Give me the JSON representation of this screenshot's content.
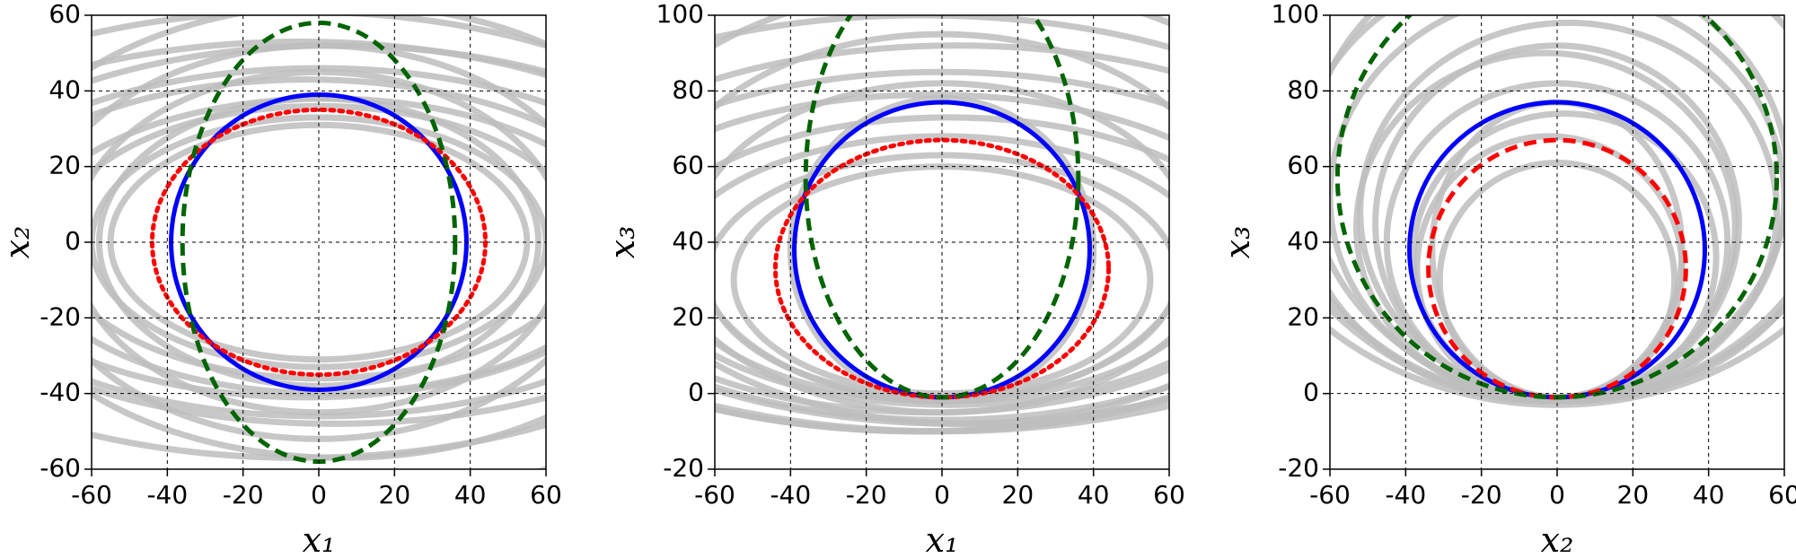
{
  "chart_data": [
    {
      "type": "ellipse",
      "xlabel": "x₁",
      "ylabel": "x₂",
      "xlim": [
        -60,
        60
      ],
      "ylim": [
        -60,
        60
      ],
      "xticks": [
        -60,
        -40,
        -20,
        0,
        20,
        40,
        60
      ],
      "yticks": [
        -60,
        -40,
        -20,
        0,
        20,
        40,
        60
      ],
      "grid": true,
      "ellipses": [
        {
          "color": "#bdbdbd",
          "style": "solid",
          "center": [
            0,
            0
          ],
          "radii": [
            55,
            31
          ]
        },
        {
          "color": "#bdbdbd",
          "style": "solid",
          "center": [
            0,
            0
          ],
          "radii": [
            60,
            33
          ]
        },
        {
          "color": "#bdbdbd",
          "style": "solid",
          "center": [
            0,
            0
          ],
          "radii": [
            70,
            36
          ]
        },
        {
          "color": "#bdbdbd",
          "style": "solid",
          "center": [
            2,
            -1
          ],
          "radii": [
            80,
            39
          ]
        },
        {
          "color": "#bdbdbd",
          "style": "solid",
          "center": [
            -3,
            1
          ],
          "radii": [
            90,
            42
          ]
        },
        {
          "color": "#bdbdbd",
          "style": "solid",
          "center": [
            0,
            0
          ],
          "radii": [
            100,
            46
          ]
        },
        {
          "color": "#bdbdbd",
          "style": "solid",
          "center": [
            4,
            2
          ],
          "radii": [
            110,
            50
          ]
        },
        {
          "color": "#bdbdbd",
          "style": "solid",
          "center": [
            -5,
            -2
          ],
          "radii": [
            120,
            55
          ]
        },
        {
          "color": "#bdbdbd",
          "style": "solid",
          "center": [
            0,
            0
          ],
          "radii": [
            65,
            45
          ]
        },
        {
          "color": "#bdbdbd",
          "style": "solid",
          "center": [
            0,
            0
          ],
          "radii": [
            75,
            52
          ]
        },
        {
          "color": "#bdbdbd",
          "style": "solid",
          "center": [
            6,
            3
          ],
          "radii": [
            95,
            60
          ]
        },
        {
          "color": "#bdbdbd",
          "style": "solid",
          "center": [
            -6,
            -4
          ],
          "radii": [
            130,
            65
          ]
        },
        {
          "color": "#bdbdbd",
          "style": "solid",
          "center": [
            0,
            0
          ],
          "radii": [
            58,
            38
          ]
        },
        {
          "color": "#bdbdbd",
          "style": "solid",
          "center": [
            0,
            0
          ],
          "radii": [
            140,
            70
          ]
        },
        {
          "color": "#0000ff",
          "style": "solid",
          "center": [
            0,
            0
          ],
          "radii": [
            39,
            39
          ]
        },
        {
          "color": "#ff0000",
          "style": "dotted",
          "center": [
            0,
            0
          ],
          "radii": [
            44,
            35
          ]
        },
        {
          "color": "#006400",
          "style": "dashed",
          "center": [
            0,
            0
          ],
          "radii": [
            36,
            58
          ]
        }
      ]
    },
    {
      "type": "ellipse",
      "xlabel": "x₁",
      "ylabel": "x₃",
      "xlim": [
        -60,
        60
      ],
      "ylim": [
        -20,
        100
      ],
      "xticks": [
        -60,
        -40,
        -20,
        0,
        20,
        40,
        60
      ],
      "yticks": [
        -20,
        0,
        20,
        40,
        60,
        80,
        100
      ],
      "grid": true,
      "ellipses": [
        {
          "color": "#bdbdbd",
          "style": "solid",
          "center": [
            0,
            30
          ],
          "radii": [
            55,
            30
          ]
        },
        {
          "color": "#bdbdbd",
          "style": "solid",
          "center": [
            0,
            31
          ],
          "radii": [
            62,
            32
          ]
        },
        {
          "color": "#bdbdbd",
          "style": "solid",
          "center": [
            0,
            33
          ],
          "radii": [
            72,
            35
          ]
        },
        {
          "color": "#bdbdbd",
          "style": "solid",
          "center": [
            2,
            35
          ],
          "radii": [
            82,
            38
          ]
        },
        {
          "color": "#bdbdbd",
          "style": "solid",
          "center": [
            -3,
            37
          ],
          "radii": [
            92,
            42
          ]
        },
        {
          "color": "#bdbdbd",
          "style": "solid",
          "center": [
            0,
            39
          ],
          "radii": [
            102,
            46
          ]
        },
        {
          "color": "#bdbdbd",
          "style": "solid",
          "center": [
            4,
            42
          ],
          "radii": [
            112,
            50
          ]
        },
        {
          "color": "#bdbdbd",
          "style": "solid",
          "center": [
            -5,
            45
          ],
          "radii": [
            122,
            55
          ]
        },
        {
          "color": "#bdbdbd",
          "style": "solid",
          "center": [
            0,
            40
          ],
          "radii": [
            66,
            42
          ]
        },
        {
          "color": "#bdbdbd",
          "style": "solid",
          "center": [
            0,
            45
          ],
          "radii": [
            76,
            50
          ]
        },
        {
          "color": "#bdbdbd",
          "style": "solid",
          "center": [
            6,
            50
          ],
          "radii": [
            96,
            58
          ]
        },
        {
          "color": "#bdbdbd",
          "style": "solid",
          "center": [
            -6,
            55
          ],
          "radii": [
            130,
            65
          ]
        },
        {
          "color": "#bdbdbd",
          "style": "solid",
          "center": [
            0,
            38
          ],
          "radii": [
            40,
            40
          ]
        },
        {
          "color": "#bdbdbd",
          "style": "solid",
          "center": [
            0,
            60
          ],
          "radii": [
            140,
            70
          ]
        },
        {
          "color": "#0000ff",
          "style": "solid",
          "center": [
            0,
            38
          ],
          "radii": [
            39,
            39
          ]
        },
        {
          "color": "#ff0000",
          "style": "dotted",
          "center": [
            0,
            33
          ],
          "radii": [
            44,
            34
          ]
        },
        {
          "color": "#006400",
          "style": "dashed",
          "center": [
            0,
            57
          ],
          "radii": [
            36,
            58
          ]
        }
      ]
    },
    {
      "type": "ellipse",
      "xlabel": "x₂",
      "ylabel": "x₃",
      "xlim": [
        -60,
        60
      ],
      "ylim": [
        -20,
        100
      ],
      "xticks": [
        -60,
        -40,
        -20,
        0,
        20,
        40,
        60
      ],
      "yticks": [
        -20,
        0,
        20,
        40,
        60,
        80,
        100
      ],
      "grid": true,
      "ellipses": [
        {
          "color": "#bdbdbd",
          "style": "solid",
          "center": [
            0,
            30
          ],
          "radii": [
            31,
            31
          ]
        },
        {
          "color": "#bdbdbd",
          "style": "solid",
          "center": [
            -2,
            33
          ],
          "radii": [
            35,
            35
          ]
        },
        {
          "color": "#bdbdbd",
          "style": "solid",
          "center": [
            2,
            36
          ],
          "radii": [
            40,
            38
          ]
        },
        {
          "color": "#bdbdbd",
          "style": "solid",
          "center": [
            0,
            40
          ],
          "radii": [
            45,
            42
          ]
        },
        {
          "color": "#bdbdbd",
          "style": "solid",
          "center": [
            -3,
            44
          ],
          "radii": [
            50,
            46
          ]
        },
        {
          "color": "#bdbdbd",
          "style": "solid",
          "center": [
            3,
            48
          ],
          "radii": [
            55,
            50
          ]
        },
        {
          "color": "#bdbdbd",
          "style": "solid",
          "center": [
            0,
            52
          ],
          "radii": [
            60,
            54
          ]
        },
        {
          "color": "#bdbdbd",
          "style": "solid",
          "center": [
            -4,
            56
          ],
          "radii": [
            65,
            58
          ]
        },
        {
          "color": "#bdbdbd",
          "style": "solid",
          "center": [
            4,
            60
          ],
          "radii": [
            70,
            62
          ]
        },
        {
          "color": "#bdbdbd",
          "style": "solid",
          "center": [
            0,
            65
          ],
          "radii": [
            75,
            67
          ]
        },
        {
          "color": "#bdbdbd",
          "style": "solid",
          "center": [
            0,
            70
          ],
          "radii": [
            80,
            72
          ]
        },
        {
          "color": "#bdbdbd",
          "style": "solid",
          "center": [
            0,
            38
          ],
          "radii": [
            33,
            39
          ]
        },
        {
          "color": "#bdbdbd",
          "style": "solid",
          "center": [
            0,
            45
          ],
          "radii": [
            48,
            47
          ]
        },
        {
          "color": "#bdbdbd",
          "style": "solid",
          "center": [
            0,
            75
          ],
          "radii": [
            90,
            78
          ]
        },
        {
          "color": "#0000ff",
          "style": "solid",
          "center": [
            0,
            38
          ],
          "radii": [
            39,
            39
          ]
        },
        {
          "color": "#ff0000",
          "style": "dashed",
          "center": [
            0,
            33
          ],
          "radii": [
            34,
            34
          ]
        },
        {
          "color": "#006400",
          "style": "dashed",
          "center": [
            0,
            57
          ],
          "radii": [
            58,
            58
          ]
        }
      ]
    }
  ]
}
